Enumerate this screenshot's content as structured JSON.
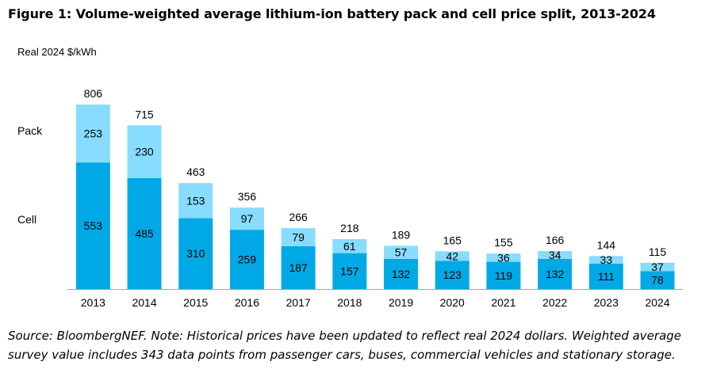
{
  "figure_title": "Figure 1: Volume-weighted average lithium-ion battery pack and cell price split, 2013-2024",
  "source_note": "Source: BloombergNEF. Note: Historical prices have been updated to reflect real 2024 dollars. Weighted average survey value includes 343 data points from passenger cars, buses, commercial vehicles and stationary storage.",
  "colors": {
    "cell": "#00a9e6",
    "pack": "#87dcff",
    "axis": "#a6a6a6"
  },
  "chart_data": {
    "type": "bar",
    "stacked": true,
    "ylabel": "Real 2024 $/kWh",
    "categories": [
      "2013",
      "2014",
      "2015",
      "2016",
      "2017",
      "2018",
      "2019",
      "2020",
      "2021",
      "2022",
      "2023",
      "2024"
    ],
    "series": [
      {
        "name": "Cell",
        "values": [
          553,
          485,
          310,
          259,
          187,
          157,
          132,
          123,
          119,
          132,
          111,
          78
        ]
      },
      {
        "name": "Pack",
        "values": [
          253,
          230,
          153,
          97,
          79,
          61,
          57,
          42,
          36,
          34,
          33,
          37
        ]
      }
    ],
    "totals": [
      806,
      715,
      463,
      356,
      266,
      218,
      189,
      165,
      155,
      166,
      144,
      115
    ],
    "ylim": [
      0,
      806
    ],
    "grid": false,
    "legend_placement": "inline-left"
  }
}
